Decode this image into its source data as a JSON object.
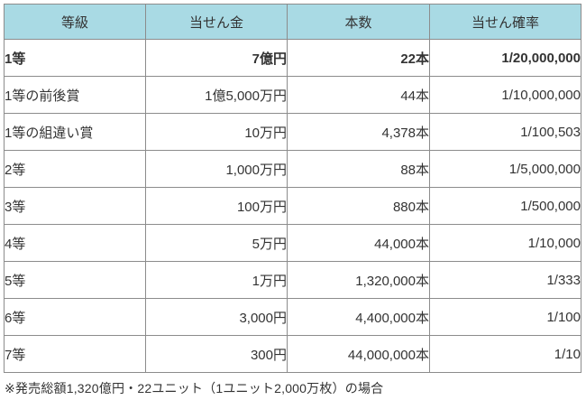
{
  "colors": {
    "header_bg": "#a9dae4",
    "rank_column_bg": "#d3ebf3",
    "border": "#8c8c8c",
    "text": "#333333",
    "page_bg": "#ffffff"
  },
  "table": {
    "headers": [
      "等級",
      "当せん金",
      "本数",
      "当せん確率"
    ],
    "rows": [
      {
        "rank": "1等",
        "prize": "7億円",
        "count": "22本",
        "probability": "1/20,000,000",
        "bold": true
      },
      {
        "rank": "1等の前後賞",
        "prize": "1億5,000万円",
        "count": "44本",
        "probability": "1/10,000,000",
        "bold": false
      },
      {
        "rank": "1等の組違い賞",
        "prize": "10万円",
        "count": "4,378本",
        "probability": "1/100,503",
        "bold": false
      },
      {
        "rank": "2等",
        "prize": "1,000万円",
        "count": "88本",
        "probability": "1/5,000,000",
        "bold": false
      },
      {
        "rank": "3等",
        "prize": "100万円",
        "count": "880本",
        "probability": "1/500,000",
        "bold": false
      },
      {
        "rank": "4等",
        "prize": "5万円",
        "count": "44,000本",
        "probability": "1/10,000",
        "bold": false
      },
      {
        "rank": "5等",
        "prize": "1万円",
        "count": "1,320,000本",
        "probability": "1/333",
        "bold": false
      },
      {
        "rank": "6等",
        "prize": "3,000円",
        "count": "4,400,000本",
        "probability": "1/100",
        "bold": false
      },
      {
        "rank": "7等",
        "prize": "300円",
        "count": "44,000,000本",
        "probability": "1/10",
        "bold": false
      }
    ]
  },
  "footnote": "※発売総額1,320億円・22ユニット（1ユニット2,000万枚）の場合"
}
